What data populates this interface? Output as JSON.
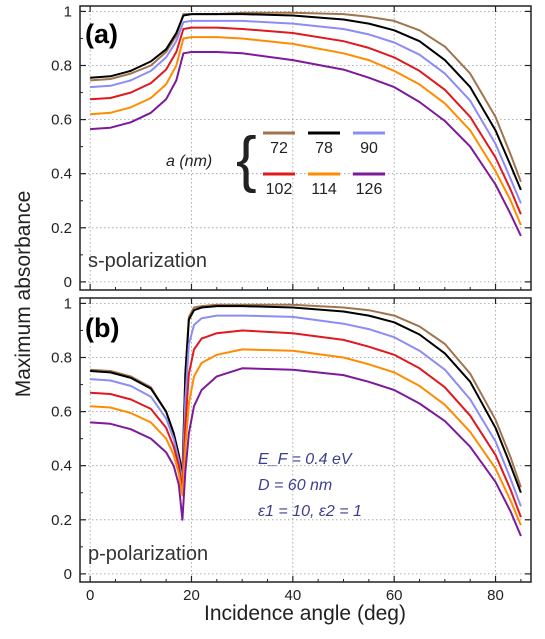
{
  "chart_data": [
    {
      "type": "line",
      "panel_label": "(a)",
      "polarization_label": "s-polarization",
      "xlim": [
        -2,
        87
      ],
      "ylim": [
        -0.03,
        1.02
      ],
      "xticks": [
        "0",
        "20",
        "40",
        "60",
        "80"
      ],
      "yticks": [
        "0",
        "0.2",
        "0.4",
        "0.6",
        "0.8",
        "1"
      ],
      "grid": true,
      "legend": {
        "title": "a (nm)",
        "placement": "center-right",
        "entries": [
          "72",
          "78",
          "90",
          "102",
          "114",
          "126"
        ]
      },
      "series": [
        {
          "name": "72",
          "color": "#a0754e",
          "x": [
            0,
            4,
            8,
            12,
            15,
            17,
            18.4,
            20,
            25,
            30,
            40,
            50,
            55,
            60,
            65,
            70,
            75,
            80,
            83,
            85
          ],
          "y": [
            0.745,
            0.75,
            0.77,
            0.8,
            0.85,
            0.91,
            0.99,
            0.99,
            0.99,
            0.995,
            0.995,
            0.99,
            0.98,
            0.965,
            0.93,
            0.87,
            0.77,
            0.61,
            0.47,
            0.37
          ]
        },
        {
          "name": "78",
          "color": "#000000",
          "x": [
            0,
            4,
            8,
            12,
            15,
            17,
            18.4,
            20,
            25,
            30,
            40,
            50,
            55,
            60,
            65,
            70,
            75,
            80,
            83,
            85
          ],
          "y": [
            0.755,
            0.76,
            0.78,
            0.815,
            0.86,
            0.92,
            0.985,
            0.99,
            0.99,
            0.99,
            0.985,
            0.97,
            0.955,
            0.93,
            0.89,
            0.82,
            0.72,
            0.56,
            0.43,
            0.34
          ]
        },
        {
          "name": "90",
          "color": "#8c8cf5",
          "x": [
            0,
            4,
            8,
            12,
            15,
            17,
            18.4,
            20,
            25,
            30,
            40,
            50,
            55,
            60,
            65,
            70,
            75,
            80,
            83,
            85
          ],
          "y": [
            0.72,
            0.725,
            0.745,
            0.78,
            0.83,
            0.89,
            0.96,
            0.965,
            0.965,
            0.965,
            0.955,
            0.935,
            0.915,
            0.885,
            0.84,
            0.77,
            0.67,
            0.51,
            0.38,
            0.29
          ]
        },
        {
          "name": "102",
          "color": "#e0191e",
          "x": [
            0,
            4,
            8,
            12,
            15,
            17,
            18.4,
            20,
            25,
            30,
            40,
            50,
            55,
            60,
            65,
            70,
            75,
            80,
            83,
            85
          ],
          "y": [
            0.675,
            0.68,
            0.7,
            0.735,
            0.785,
            0.85,
            0.935,
            0.94,
            0.94,
            0.935,
            0.92,
            0.89,
            0.865,
            0.83,
            0.78,
            0.71,
            0.61,
            0.46,
            0.34,
            0.25
          ]
        },
        {
          "name": "114",
          "color": "#ff8c00",
          "x": [
            0,
            4,
            8,
            12,
            15,
            17,
            18.4,
            20,
            25,
            30,
            40,
            50,
            55,
            60,
            65,
            70,
            75,
            80,
            83,
            85
          ],
          "y": [
            0.62,
            0.625,
            0.645,
            0.68,
            0.73,
            0.8,
            0.9,
            0.905,
            0.905,
            0.9,
            0.88,
            0.845,
            0.82,
            0.78,
            0.73,
            0.66,
            0.56,
            0.41,
            0.3,
            0.21
          ]
        },
        {
          "name": "126",
          "color": "#7d1a9a",
          "x": [
            0,
            4,
            8,
            12,
            15,
            17,
            18.4,
            20,
            25,
            30,
            40,
            50,
            55,
            60,
            65,
            70,
            75,
            80,
            83,
            85
          ],
          "y": [
            0.565,
            0.57,
            0.59,
            0.625,
            0.675,
            0.745,
            0.845,
            0.85,
            0.85,
            0.845,
            0.82,
            0.785,
            0.755,
            0.72,
            0.665,
            0.595,
            0.5,
            0.36,
            0.25,
            0.17
          ]
        }
      ]
    },
    {
      "type": "line",
      "panel_label": "(b)",
      "polarization_label": "p-polarization",
      "xlim": [
        -2,
        87
      ],
      "ylim": [
        -0.03,
        1.02
      ],
      "xticks": [
        "0",
        "20",
        "40",
        "60",
        "80"
      ],
      "yticks": [
        "0",
        "0.2",
        "0.4",
        "0.6",
        "0.8",
        "1"
      ],
      "xlabel": "Incidence angle (deg)",
      "ylabel": "Maximum absorbance",
      "grid": true,
      "annotation": [
        "E_F = 0.4 eV",
        "D = 60 nm",
        "ε1 = 10, ε2 = 1"
      ],
      "series": [
        {
          "name": "72",
          "color": "#a0754e",
          "x": [
            0,
            4,
            8,
            12,
            15,
            16.5,
            17.5,
            18.2,
            18.8,
            19.5,
            20.5,
            22,
            25,
            30,
            40,
            50,
            55,
            60,
            65,
            70,
            75,
            80,
            83,
            85
          ],
          "y": [
            0.755,
            0.75,
            0.73,
            0.69,
            0.6,
            0.52,
            0.44,
            0.38,
            0.75,
            0.95,
            0.985,
            0.99,
            0.995,
            0.995,
            0.995,
            0.985,
            0.975,
            0.955,
            0.915,
            0.85,
            0.74,
            0.57,
            0.43,
            0.32
          ]
        },
        {
          "name": "78",
          "color": "#000000",
          "x": [
            0,
            4,
            8,
            12,
            15,
            16.5,
            17.5,
            18.2,
            18.8,
            19.5,
            20.5,
            22,
            25,
            30,
            40,
            50,
            55,
            60,
            65,
            70,
            75,
            80,
            83,
            85
          ],
          "y": [
            0.75,
            0.745,
            0.725,
            0.685,
            0.6,
            0.52,
            0.44,
            0.36,
            0.74,
            0.94,
            0.975,
            0.985,
            0.99,
            0.99,
            0.985,
            0.97,
            0.955,
            0.93,
            0.885,
            0.815,
            0.71,
            0.54,
            0.4,
            0.3
          ]
        },
        {
          "name": "90",
          "color": "#8c8cf5",
          "x": [
            0,
            4,
            8,
            12,
            15,
            16.5,
            17.5,
            18.2,
            18.8,
            19.5,
            20.5,
            22,
            25,
            30,
            40,
            50,
            55,
            60,
            65,
            70,
            75,
            80,
            83,
            85
          ],
          "y": [
            0.72,
            0.715,
            0.695,
            0.655,
            0.575,
            0.5,
            0.42,
            0.34,
            0.65,
            0.85,
            0.92,
            0.945,
            0.955,
            0.955,
            0.95,
            0.925,
            0.905,
            0.875,
            0.825,
            0.755,
            0.645,
            0.49,
            0.35,
            0.25
          ]
        },
        {
          "name": "102",
          "color": "#e0191e",
          "x": [
            0,
            4,
            8,
            12,
            15,
            16.5,
            17.5,
            18.2,
            18.8,
            19.5,
            20.5,
            22,
            25,
            30,
            40,
            50,
            55,
            60,
            65,
            70,
            75,
            80,
            83,
            85
          ],
          "y": [
            0.67,
            0.665,
            0.645,
            0.61,
            0.54,
            0.47,
            0.4,
            0.31,
            0.55,
            0.74,
            0.83,
            0.87,
            0.89,
            0.9,
            0.89,
            0.865,
            0.84,
            0.81,
            0.76,
            0.69,
            0.585,
            0.44,
            0.31,
            0.21
          ]
        },
        {
          "name": "114",
          "color": "#ff8c00",
          "x": [
            0,
            4,
            8,
            12,
            15,
            16.5,
            17.5,
            18.2,
            18.8,
            19.5,
            20.5,
            22,
            25,
            30,
            40,
            50,
            55,
            60,
            65,
            70,
            75,
            80,
            83,
            85
          ],
          "y": [
            0.62,
            0.615,
            0.595,
            0.56,
            0.5,
            0.44,
            0.37,
            0.29,
            0.47,
            0.63,
            0.73,
            0.78,
            0.81,
            0.83,
            0.825,
            0.8,
            0.775,
            0.745,
            0.695,
            0.625,
            0.525,
            0.39,
            0.27,
            0.18
          ]
        },
        {
          "name": "126",
          "color": "#7d1a9a",
          "x": [
            0,
            4,
            8,
            12,
            15,
            16.5,
            17.5,
            18.2,
            18.8,
            19.5,
            20.5,
            22,
            25,
            30,
            40,
            50,
            55,
            60,
            65,
            70,
            75,
            80,
            83,
            85
          ],
          "y": [
            0.56,
            0.555,
            0.535,
            0.5,
            0.45,
            0.4,
            0.33,
            0.2,
            0.38,
            0.52,
            0.62,
            0.68,
            0.73,
            0.76,
            0.755,
            0.735,
            0.71,
            0.68,
            0.63,
            0.565,
            0.47,
            0.34,
            0.23,
            0.14
          ]
        }
      ]
    }
  ]
}
